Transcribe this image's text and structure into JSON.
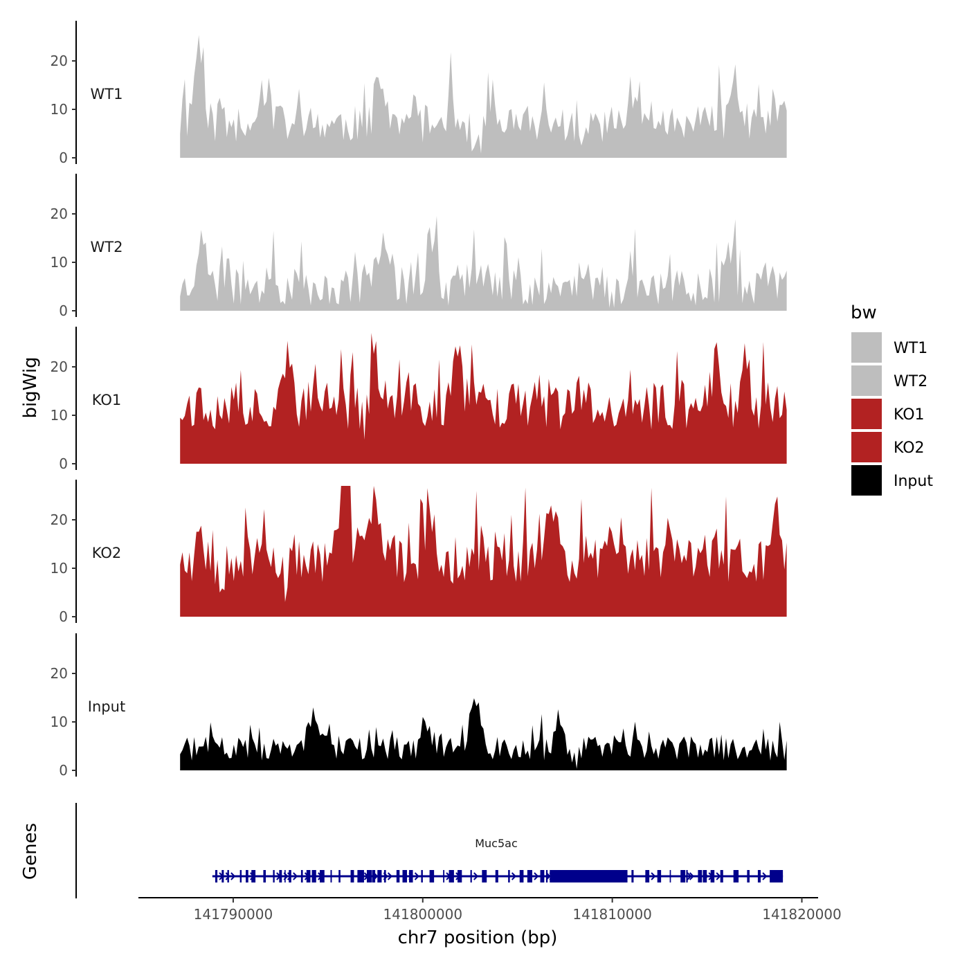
{
  "chart_data": {
    "type": "area",
    "title": "",
    "ylabel": "bigWig",
    "xlabel": "chr7 position (bp)",
    "genes_label": "Genes",
    "gene_name": "Muc5ac",
    "gene_color": "#00008b",
    "gene_start": 141788900,
    "gene_end": 141819000,
    "gene_thick_start": 141806700,
    "gene_thick_end": 141810800,
    "xlim": [
      141785000,
      141820000
    ],
    "x_ticks": [
      141790000,
      141800000,
      141810000,
      141820000
    ],
    "x_tick_labels": [
      "141790000",
      "141800000",
      "141810000",
      "141820000"
    ],
    "ylim": [
      0,
      28
    ],
    "y_ticks": [
      0,
      10,
      20
    ],
    "y_tick_labels": [
      "0",
      "10",
      "20"
    ],
    "region": [
      141787200,
      141819200
    ],
    "legend_title": "bw",
    "legend": [
      {
        "label": "WT1",
        "color": "#bebebe"
      },
      {
        "label": "WT2",
        "color": "#bebebe"
      },
      {
        "label": "KO1",
        "color": "#b22222"
      },
      {
        "label": "KO2",
        "color": "#b22222"
      },
      {
        "label": "Input",
        "color": "#000000"
      }
    ],
    "series": [
      {
        "name": "WT1",
        "color": "#bebebe",
        "base": 7,
        "amp": 4,
        "peaks": [
          [
            141788200,
            17
          ],
          [
            141791800,
            6
          ],
          [
            141797800,
            10
          ],
          [
            141801500,
            4
          ],
          [
            141811200,
            8
          ],
          [
            141816500,
            9
          ]
        ],
        "dips": [
          [
            141802800,
            6
          ],
          [
            141808300,
            5
          ]
        ],
        "seed": 11
      },
      {
        "name": "WT2",
        "color": "#bebebe",
        "base": 5,
        "amp": 4,
        "peaks": [
          [
            141788300,
            10
          ],
          [
            141797900,
            11
          ],
          [
            141800400,
            9
          ],
          [
            141803000,
            5
          ],
          [
            141816200,
            8
          ]
        ],
        "dips": [
          [
            141794500,
            3
          ],
          [
            141810200,
            5
          ]
        ],
        "seed": 23
      },
      {
        "name": "KO1",
        "color": "#b22222",
        "base": 12,
        "amp": 5,
        "peaks": [
          [
            141792800,
            10
          ],
          [
            141797500,
            9
          ],
          [
            141801800,
            12
          ],
          [
            141815500,
            10
          ],
          [
            141817000,
            9
          ]
        ],
        "dips": [
          [
            141797000,
            3
          ],
          [
            141809800,
            3
          ]
        ],
        "seed": 37
      },
      {
        "name": "KO2",
        "color": "#b22222",
        "base": 12,
        "amp": 5,
        "peaks": [
          [
            141795800,
            14
          ],
          [
            141797400,
            10
          ],
          [
            141800500,
            8
          ],
          [
            141806800,
            12
          ],
          [
            141810100,
            6
          ],
          [
            141818600,
            9
          ]
        ],
        "dips": [
          [
            141789500,
            4
          ],
          [
            141792800,
            6
          ],
          [
            141801200,
            3
          ]
        ],
        "seed": 53
      },
      {
        "name": "Input",
        "color": "#000000",
        "base": 4.5,
        "amp": 2.5,
        "peaks": [
          [
            141794200,
            6
          ],
          [
            141800200,
            6
          ],
          [
            141802800,
            11
          ],
          [
            141807200,
            6
          ]
        ],
        "dips": [
          [
            141808000,
            3
          ]
        ],
        "seed": 71
      }
    ]
  }
}
